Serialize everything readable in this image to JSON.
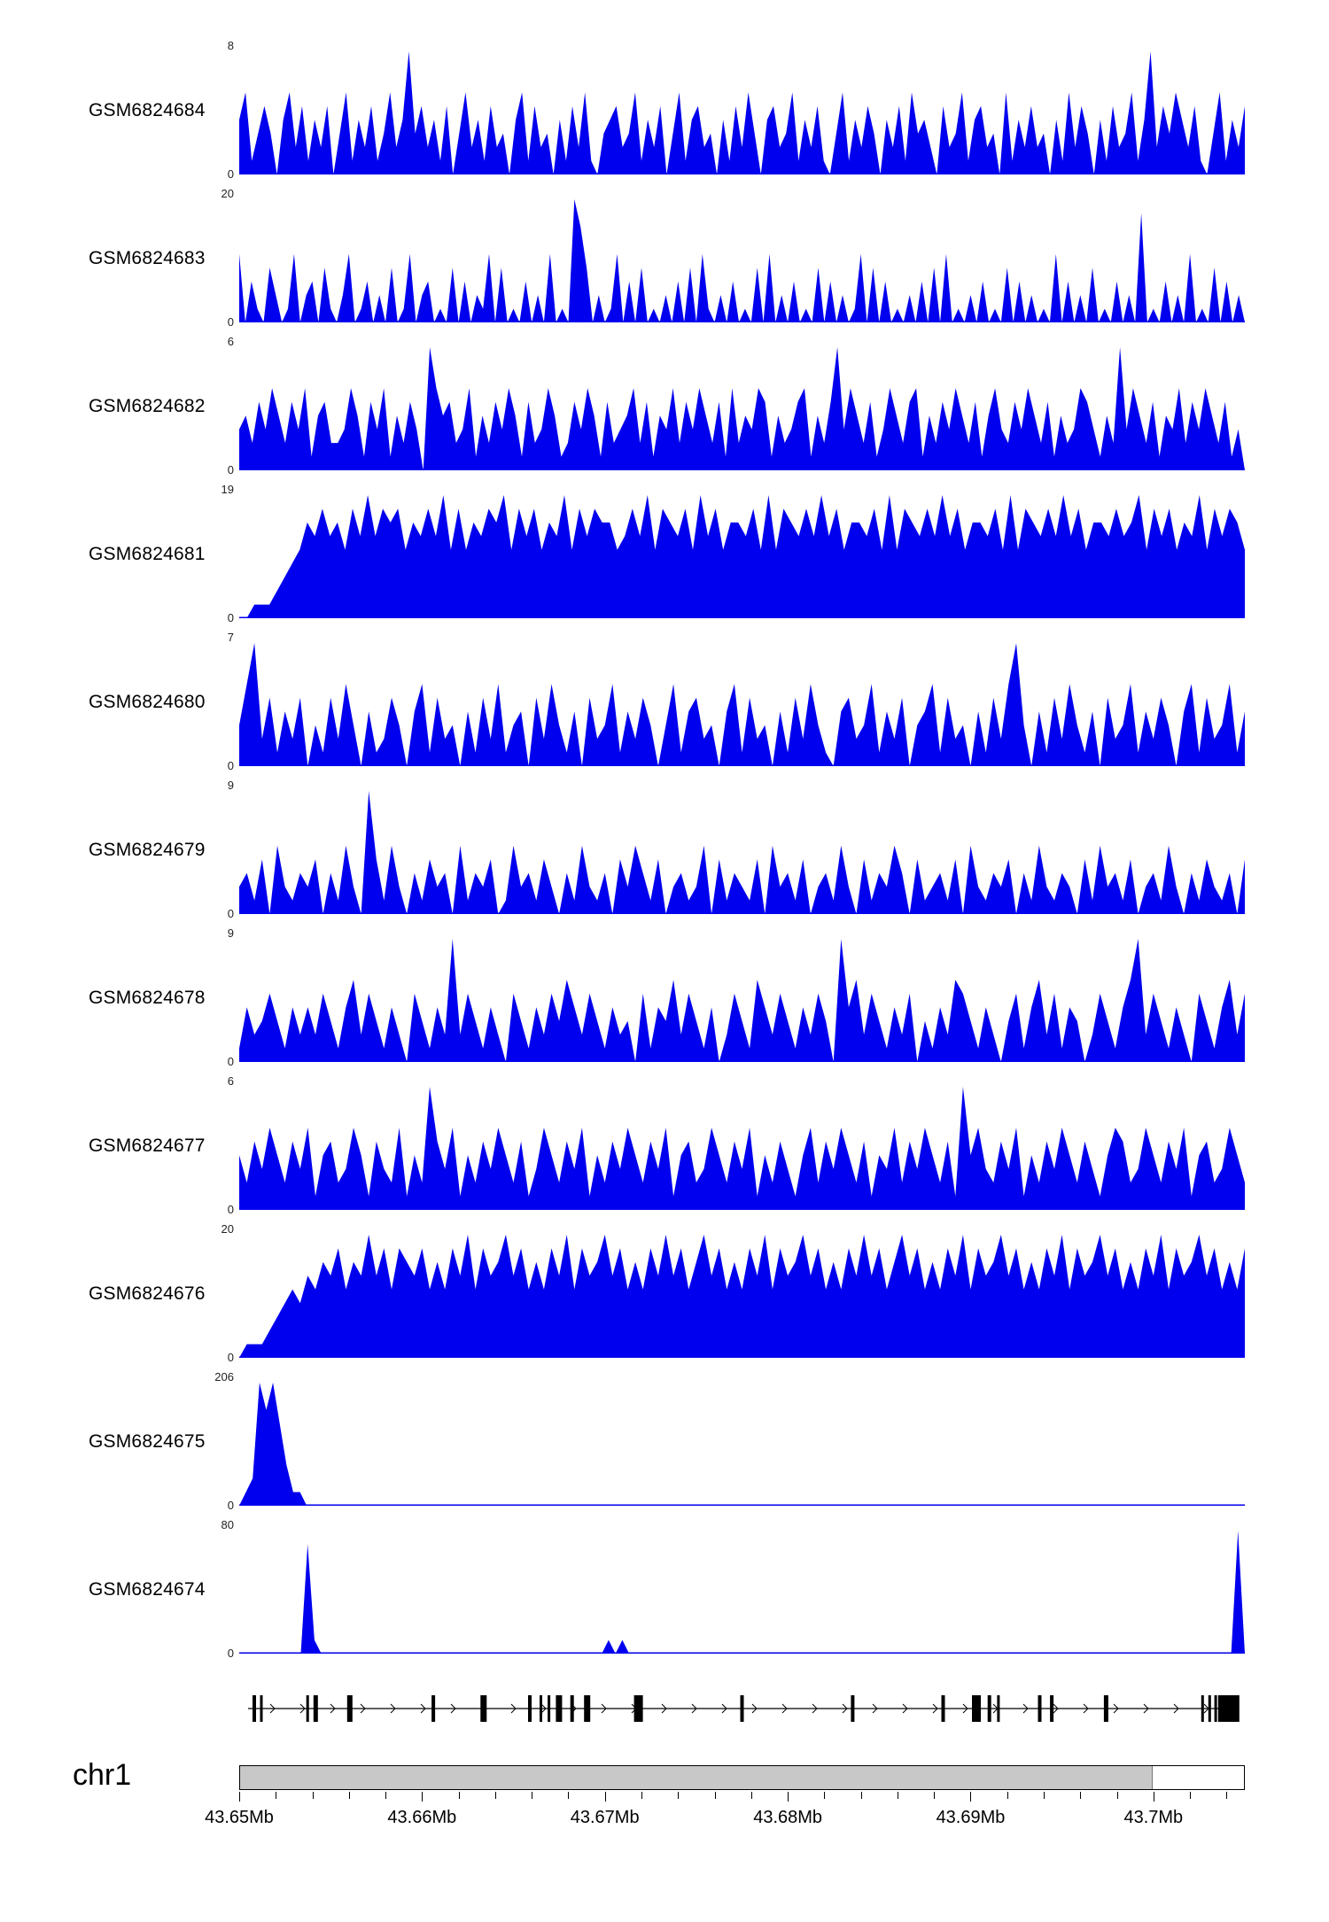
{
  "labels": {
    "chromosome": "chr1"
  },
  "chart_data": {
    "type": "area",
    "description": "Genome browser coverage tracks over chr1:43.65Mb-43.705Mb with gene model and chromosome axis",
    "signal_color": "#0000ee",
    "region": {
      "chromosome": "chr1",
      "axis_labels": [
        "43.65Mb",
        "43.66Mb",
        "43.67Mb",
        "43.68Mb",
        "43.69Mb",
        "43.7Mb"
      ],
      "axis_fracs": [
        0,
        0.1818,
        0.3636,
        0.5455,
        0.7273,
        0.9091
      ],
      "minor_tick_step": 0.036364,
      "ideogram_gray_fraction": 0.9091
    },
    "tracks": [
      {
        "label": "GSM6824684",
        "ymax": "8",
        "ymin": "0",
        "profile": "46135304625142503614251362493524150362415230461523041526103452361425036145230415263045236142510361425304251634205236145230614252304162530415236149253642510361425"
      },
      {
        "label": "GSM6824683",
        "ymax": "20",
        "ymin": "0",
        "profile": "5031042015023041025013020401502301040302150401030205010974020150304010203040510203010405020301040302015040301020304050102030104030201050302040103020801030205010403020"
      },
      {
        "label": "GSM6824682",
        "ymax": "6",
        "ymin": "0",
        "profile": "3425364253614522364153614253096452361425364152364125364152346251436253642516243651423561425936425136425614253642514632536425142365314293642514362536425130"
      },
      {
        "label": "GSM6824681",
        "ymax": "19",
        "ymin": "0",
        "profile": "00111234576867586968785768695857687958685769586877568695876859685776859587686968577685958768696857768595876869685776867958685769586875"
      },
      {
        "label": "GSM6824680",
        "ymax": "7",
        "ymin": "0",
        "profile": "3692514250315263041253046152304152613405263140523614253036145230461523041526310452361425034615230415269304152631405236142530461523614"
      },
      {
        "label": "GSM6824679",
        "ymax": "9",
        "ymin": "0",
        "profile": "2314052132403152094152031423051324015231420315213042531402312504132140523140231520413253041231405213240315213204152314023152031421304"
      },
      {
        "label": "GSM6824678",
        "ymax": "9",
        "ymin": "0",
        "profile": "1423531424253146253142053142925314205314253642531423051436253140253164253142530946253142503142653142035146251430253146925314205314625"
      },
      {
        "label": "GSM6824677",
        "ymax": "6",
        "ymin": "0",
        "profile": "4253642536145236415326142953614253642513642536142536425361452364253614253146253642514362536425194632536142536425314652364253614523642"
      },
      {
        "label": "GSM6824676",
        "ymax": "20",
        "ymin": "0",
        "profile": "0111234546576857696858768575869586796857586958679685758696857968575869586796857586968579685758695867968575869586796857586958679685758"
      },
      {
        "label": "GSM6824675",
        "ymax": "206",
        "ymin": "0",
        "profile": "012979631100000000000000000000000000000000000000000000000000000000000000000000000000000000000000000000000000000000000000000000000000000000000000000000"
      },
      {
        "label": "GSM6824674",
        "ymax": "80",
        "ymin": "0",
        "profile": "0000000000810000000000000000000000000000000000000000001010000000000000000000000000000000000000000000000000000000000000000000000000000000000000000090"
      }
    ],
    "gene_track": {
      "strand": "right",
      "exons": [
        {
          "x": 0.015,
          "w": 4
        },
        {
          "x": 0.022,
          "w": 3
        },
        {
          "x": 0.068,
          "w": 3
        },
        {
          "x": 0.076,
          "w": 5
        },
        {
          "x": 0.11,
          "w": 6
        },
        {
          "x": 0.193,
          "w": 4
        },
        {
          "x": 0.243,
          "w": 7
        },
        {
          "x": 0.289,
          "w": 4
        },
        {
          "x": 0.3,
          "w": 3
        },
        {
          "x": 0.308,
          "w": 3
        },
        {
          "x": 0.318,
          "w": 7
        },
        {
          "x": 0.331,
          "w": 4
        },
        {
          "x": 0.346,
          "w": 7
        },
        {
          "x": 0.397,
          "w": 10
        },
        {
          "x": 0.5,
          "w": 4
        },
        {
          "x": 0.61,
          "w": 4
        },
        {
          "x": 0.7,
          "w": 4
        },
        {
          "x": 0.733,
          "w": 10
        },
        {
          "x": 0.746,
          "w": 4
        },
        {
          "x": 0.755,
          "w": 3
        },
        {
          "x": 0.796,
          "w": 4
        },
        {
          "x": 0.808,
          "w": 4
        },
        {
          "x": 0.862,
          "w": 5
        },
        {
          "x": 0.958,
          "w": 3
        },
        {
          "x": 0.965,
          "w": 3
        },
        {
          "x": 0.971,
          "w": 3
        },
        {
          "x": 0.984,
          "w": 24
        }
      ]
    }
  }
}
